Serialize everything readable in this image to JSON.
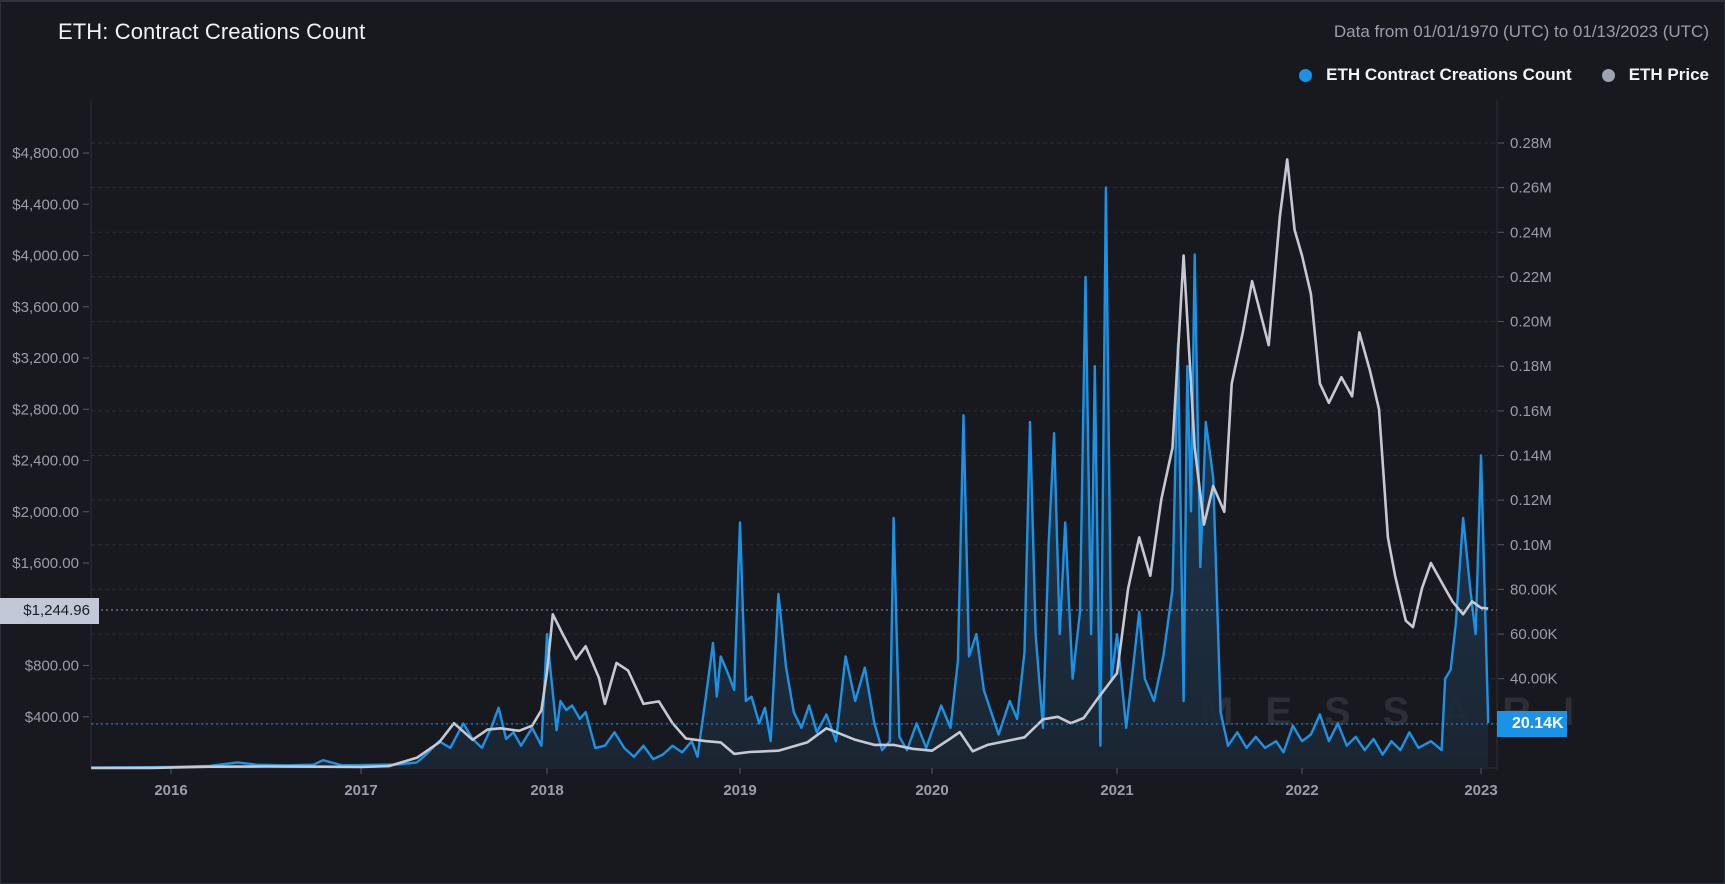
{
  "header": {
    "title": "ETH: Contract Creations Count",
    "date_range": "Data from 01/01/1970 (UTC) to 01/13/2023 (UTC)"
  },
  "legend": [
    {
      "label": "ETH Contract Creations Count",
      "color": "#1a93e6"
    },
    {
      "label": "ETH Price",
      "color": "#9ea3b2"
    }
  ],
  "crosshair": {
    "left_value": "$1,244.96",
    "right_value": "20.14K"
  },
  "watermark": "MESSARI",
  "chart_data": {
    "type": "line",
    "title": "ETH: Contract Creations Count",
    "subtitle": "Data from 01/01/1970 (UTC) to 01/13/2023 (UTC)",
    "xlabel": "",
    "x_ticks": [
      "2016",
      "2017",
      "2018",
      "2019",
      "2020",
      "2021",
      "2022",
      "2023"
    ],
    "x_range": [
      2015.58,
      2023.08
    ],
    "y_left": {
      "label": "ETH Price",
      "ticks": [
        "$400.00",
        "$800.00",
        "$1,600.00",
        "$2,000.00",
        "$2,400.00",
        "$2,800.00",
        "$3,200.00",
        "$3,600.00",
        "$4,000.00",
        "$4,400.00",
        "$4,800.00"
      ],
      "range": [
        0,
        5000
      ]
    },
    "y_right": {
      "label": "ETH Contract Creations Count",
      "ticks": [
        "40.00K",
        "60.00K",
        "80.00K",
        "0.10M",
        "0.12M",
        "0.14M",
        "0.16M",
        "0.18M",
        "0.20M",
        "0.22M",
        "0.24M",
        "0.26M",
        "0.28M"
      ],
      "range": [
        0,
        290000
      ]
    },
    "grid": true,
    "legend_position": "top-right",
    "series": [
      {
        "name": "ETH Contract Creations Count",
        "axis": "right",
        "color": "#1a93e6",
        "area": true,
        "points": [
          [
            2015.58,
            200
          ],
          [
            2015.8,
            300
          ],
          [
            2016.0,
            500
          ],
          [
            2016.2,
            900
          ],
          [
            2016.35,
            2500
          ],
          [
            2016.45,
            1500
          ],
          [
            2016.6,
            1200
          ],
          [
            2016.75,
            1500
          ],
          [
            2016.8,
            3500
          ],
          [
            2016.9,
            1200
          ],
          [
            2017.0,
            1300
          ],
          [
            2017.2,
            1600
          ],
          [
            2017.3,
            2500
          ],
          [
            2017.35,
            6000
          ],
          [
            2017.42,
            12000
          ],
          [
            2017.48,
            9000
          ],
          [
            2017.55,
            20000
          ],
          [
            2017.6,
            13000
          ],
          [
            2017.65,
            9000
          ],
          [
            2017.7,
            18000
          ],
          [
            2017.74,
            27000
          ],
          [
            2017.78,
            13000
          ],
          [
            2017.82,
            16000
          ],
          [
            2017.86,
            10000
          ],
          [
            2017.92,
            18000
          ],
          [
            2017.97,
            10000
          ],
          [
            2018.0,
            60000
          ],
          [
            2018.02,
            42000
          ],
          [
            2018.05,
            17000
          ],
          [
            2018.07,
            30000
          ],
          [
            2018.1,
            26000
          ],
          [
            2018.13,
            28000
          ],
          [
            2018.17,
            22000
          ],
          [
            2018.2,
            25000
          ],
          [
            2018.25,
            9000
          ],
          [
            2018.3,
            10000
          ],
          [
            2018.35,
            16000
          ],
          [
            2018.4,
            9000
          ],
          [
            2018.45,
            5000
          ],
          [
            2018.5,
            10000
          ],
          [
            2018.55,
            4000
          ],
          [
            2018.6,
            6000
          ],
          [
            2018.65,
            10000
          ],
          [
            2018.7,
            7000
          ],
          [
            2018.75,
            12000
          ],
          [
            2018.78,
            5000
          ],
          [
            2018.82,
            30000
          ],
          [
            2018.86,
            56000
          ],
          [
            2018.88,
            32000
          ],
          [
            2018.9,
            50000
          ],
          [
            2018.93,
            44000
          ],
          [
            2018.97,
            35000
          ],
          [
            2019.0,
            110000
          ],
          [
            2019.03,
            30000
          ],
          [
            2019.06,
            32000
          ],
          [
            2019.1,
            20000
          ],
          [
            2019.13,
            27000
          ],
          [
            2019.16,
            12000
          ],
          [
            2019.2,
            78000
          ],
          [
            2019.24,
            45000
          ],
          [
            2019.28,
            25000
          ],
          [
            2019.32,
            18000
          ],
          [
            2019.36,
            28000
          ],
          [
            2019.4,
            16000
          ],
          [
            2019.45,
            24000
          ],
          [
            2019.5,
            12000
          ],
          [
            2019.55,
            50000
          ],
          [
            2019.6,
            30000
          ],
          [
            2019.65,
            45000
          ],
          [
            2019.7,
            20000
          ],
          [
            2019.74,
            8000
          ],
          [
            2019.78,
            12000
          ],
          [
            2019.8,
            112000
          ],
          [
            2019.83,
            14000
          ],
          [
            2019.87,
            8000
          ],
          [
            2019.92,
            20000
          ],
          [
            2019.97,
            9000
          ],
          [
            2020.05,
            28000
          ],
          [
            2020.1,
            18000
          ],
          [
            2020.14,
            48000
          ],
          [
            2020.17,
            158000
          ],
          [
            2020.2,
            50000
          ],
          [
            2020.24,
            60000
          ],
          [
            2020.28,
            35000
          ],
          [
            2020.32,
            25000
          ],
          [
            2020.36,
            15000
          ],
          [
            2020.42,
            30000
          ],
          [
            2020.46,
            22000
          ],
          [
            2020.5,
            52000
          ],
          [
            2020.53,
            155000
          ],
          [
            2020.56,
            60000
          ],
          [
            2020.6,
            18000
          ],
          [
            2020.63,
            100000
          ],
          [
            2020.66,
            150000
          ],
          [
            2020.69,
            60000
          ],
          [
            2020.72,
            110000
          ],
          [
            2020.76,
            40000
          ],
          [
            2020.8,
            70000
          ],
          [
            2020.83,
            220000
          ],
          [
            2020.86,
            60000
          ],
          [
            2020.88,
            180000
          ],
          [
            2020.91,
            10000
          ],
          [
            2020.94,
            260000
          ],
          [
            2020.97,
            40000
          ],
          [
            2021.0,
            60000
          ],
          [
            2021.05,
            18000
          ],
          [
            2021.08,
            40000
          ],
          [
            2021.12,
            70000
          ],
          [
            2021.15,
            40000
          ],
          [
            2021.2,
            30000
          ],
          [
            2021.25,
            50000
          ],
          [
            2021.3,
            80000
          ],
          [
            2021.33,
            190000
          ],
          [
            2021.36,
            30000
          ],
          [
            2021.38,
            180000
          ],
          [
            2021.4,
            115000
          ],
          [
            2021.42,
            230000
          ],
          [
            2021.45,
            90000
          ],
          [
            2021.48,
            155000
          ],
          [
            2021.52,
            130000
          ],
          [
            2021.56,
            25000
          ],
          [
            2021.6,
            10000
          ],
          [
            2021.65,
            16000
          ],
          [
            2021.7,
            9000
          ],
          [
            2021.75,
            14000
          ],
          [
            2021.8,
            9000
          ],
          [
            2021.86,
            12000
          ],
          [
            2021.9,
            7000
          ],
          [
            2021.95,
            19000
          ],
          [
            2022.0,
            12000
          ],
          [
            2022.05,
            15000
          ],
          [
            2022.1,
            24000
          ],
          [
            2022.15,
            12000
          ],
          [
            2022.2,
            20000
          ],
          [
            2022.25,
            10000
          ],
          [
            2022.3,
            14000
          ],
          [
            2022.35,
            8000
          ],
          [
            2022.4,
            13000
          ],
          [
            2022.45,
            6000
          ],
          [
            2022.5,
            12000
          ],
          [
            2022.55,
            8000
          ],
          [
            2022.6,
            16000
          ],
          [
            2022.65,
            9000
          ],
          [
            2022.72,
            12000
          ],
          [
            2022.78,
            8000
          ],
          [
            2022.8,
            40000
          ],
          [
            2022.83,
            44000
          ],
          [
            2022.86,
            65000
          ],
          [
            2022.9,
            112000
          ],
          [
            2022.94,
            80000
          ],
          [
            2022.97,
            60000
          ],
          [
            2023.0,
            140000
          ],
          [
            2023.04,
            20140
          ]
        ]
      },
      {
        "name": "ETH Price",
        "axis": "left",
        "color": "#c6c9d3",
        "area": false,
        "points": [
          [
            2015.58,
            1
          ],
          [
            2015.9,
            1
          ],
          [
            2016.2,
            10
          ],
          [
            2016.5,
            12
          ],
          [
            2016.8,
            10
          ],
          [
            2017.0,
            8
          ],
          [
            2017.15,
            15
          ],
          [
            2017.3,
            80
          ],
          [
            2017.42,
            200
          ],
          [
            2017.5,
            350
          ],
          [
            2017.6,
            220
          ],
          [
            2017.68,
            300
          ],
          [
            2017.75,
            310
          ],
          [
            2017.85,
            290
          ],
          [
            2017.92,
            330
          ],
          [
            2017.97,
            450
          ],
          [
            2018.0,
            750
          ],
          [
            2018.03,
            1200
          ],
          [
            2018.08,
            1050
          ],
          [
            2018.15,
            850
          ],
          [
            2018.2,
            950
          ],
          [
            2018.27,
            700
          ],
          [
            2018.3,
            500
          ],
          [
            2018.36,
            820
          ],
          [
            2018.42,
            760
          ],
          [
            2018.5,
            500
          ],
          [
            2018.58,
            520
          ],
          [
            2018.65,
            350
          ],
          [
            2018.72,
            230
          ],
          [
            2018.82,
            210
          ],
          [
            2018.9,
            200
          ],
          [
            2018.97,
            110
          ],
          [
            2019.05,
            125
          ],
          [
            2019.2,
            135
          ],
          [
            2019.35,
            200
          ],
          [
            2019.45,
            310
          ],
          [
            2019.5,
            280
          ],
          [
            2019.6,
            220
          ],
          [
            2019.7,
            180
          ],
          [
            2019.8,
            180
          ],
          [
            2019.9,
            150
          ],
          [
            2020.0,
            135
          ],
          [
            2020.1,
            230
          ],
          [
            2020.15,
            280
          ],
          [
            2020.22,
            130
          ],
          [
            2020.3,
            180
          ],
          [
            2020.4,
            210
          ],
          [
            2020.5,
            240
          ],
          [
            2020.6,
            380
          ],
          [
            2020.68,
            400
          ],
          [
            2020.75,
            350
          ],
          [
            2020.82,
            390
          ],
          [
            2020.9,
            550
          ],
          [
            2021.0,
            740
          ],
          [
            2021.06,
            1400
          ],
          [
            2021.12,
            1800
          ],
          [
            2021.18,
            1500
          ],
          [
            2021.24,
            2100
          ],
          [
            2021.3,
            2500
          ],
          [
            2021.36,
            4000
          ],
          [
            2021.42,
            2500
          ],
          [
            2021.47,
            1900
          ],
          [
            2021.52,
            2200
          ],
          [
            2021.58,
            2000
          ],
          [
            2021.62,
            3000
          ],
          [
            2021.68,
            3400
          ],
          [
            2021.73,
            3800
          ],
          [
            2021.82,
            3300
          ],
          [
            2021.88,
            4300
          ],
          [
            2021.92,
            4750
          ],
          [
            2021.96,
            4200
          ],
          [
            2022.0,
            4000
          ],
          [
            2022.05,
            3700
          ],
          [
            2022.1,
            3000
          ],
          [
            2022.15,
            2850
          ],
          [
            2022.22,
            3050
          ],
          [
            2022.28,
            2900
          ],
          [
            2022.32,
            3400
          ],
          [
            2022.38,
            3100
          ],
          [
            2022.43,
            2800
          ],
          [
            2022.48,
            1800
          ],
          [
            2022.52,
            1500
          ],
          [
            2022.58,
            1150
          ],
          [
            2022.62,
            1100
          ],
          [
            2022.67,
            1400
          ],
          [
            2022.72,
            1600
          ],
          [
            2022.78,
            1450
          ],
          [
            2022.84,
            1300
          ],
          [
            2022.9,
            1200
          ],
          [
            2022.95,
            1300
          ],
          [
            2023.0,
            1250
          ],
          [
            2023.04,
            1245
          ]
        ]
      }
    ]
  }
}
